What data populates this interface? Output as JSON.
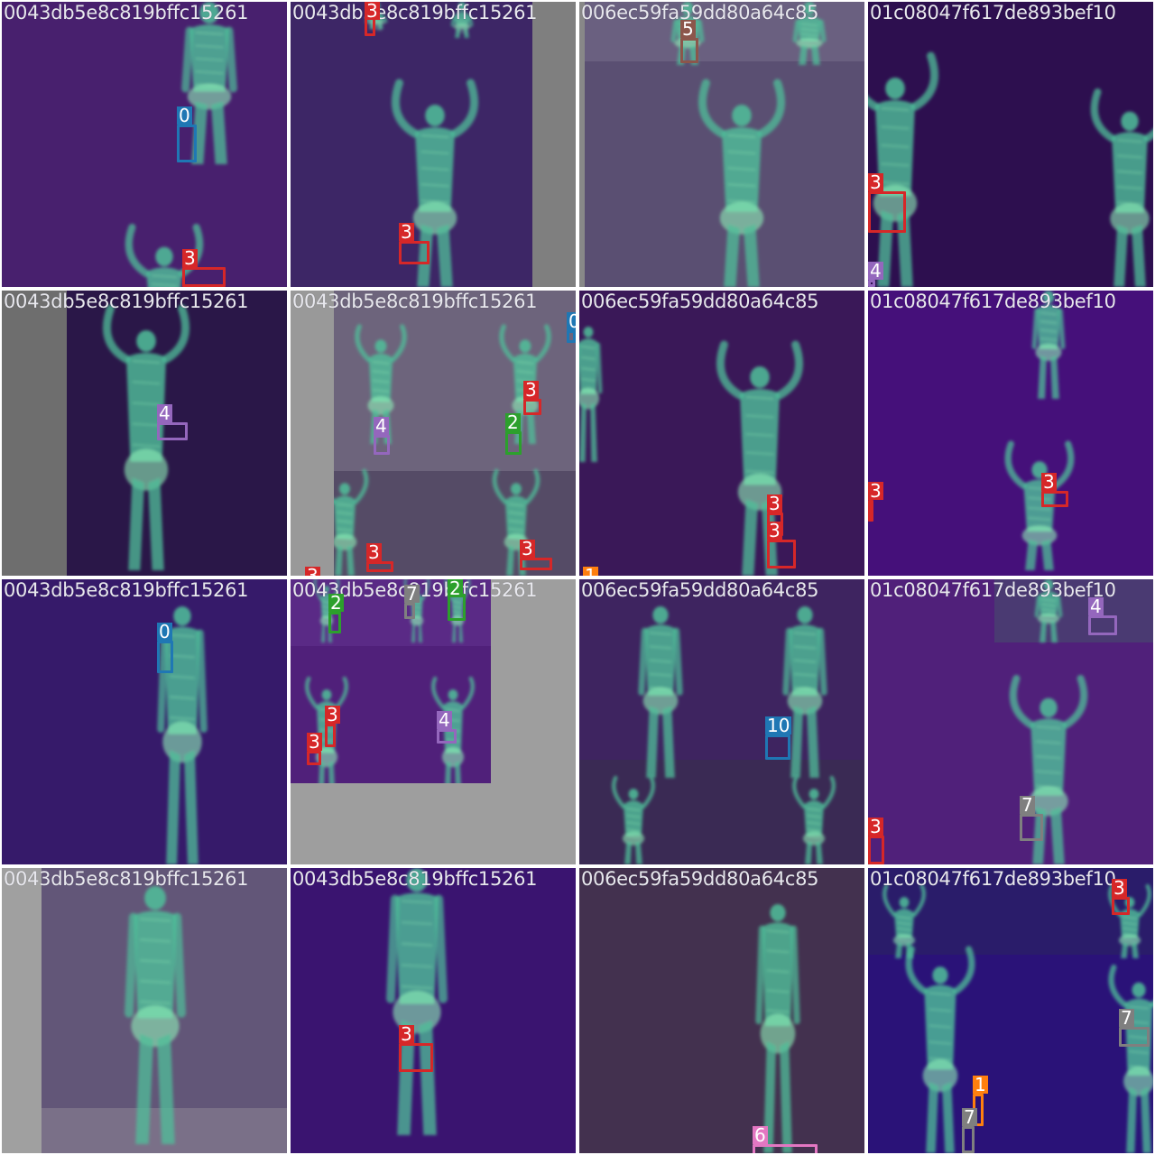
{
  "colors": {
    "0": "#1f77b4",
    "1": "#ff7f0e",
    "2": "#2ca02c",
    "3": "#d62728",
    "4": "#9467bd",
    "5": "#8c564b",
    "6": "#e377c2",
    "7": "#7f7f7f",
    "10": "#1f77b4"
  },
  "tiles": [
    {
      "title": "0043db5e8c819bffc15261",
      "bg": "#48206e",
      "boxes": [
        {
          "label": "0"
        },
        {
          "label": "3"
        }
      ]
    },
    {
      "title": "0043db5e8c819bffc15261",
      "bg": "#3d2666",
      "boxes": [
        {
          "label": "3"
        },
        {
          "label": "3"
        }
      ]
    },
    {
      "title": "006ec59fa59dd80a64c85",
      "bg": "#5a4f72",
      "boxes": [
        {
          "label": "5"
        }
      ]
    },
    {
      "title": "01c08047f617de893bef10",
      "bg": "#2d0f4f",
      "boxes": [
        {
          "label": "3"
        },
        {
          "label": "4"
        }
      ]
    },
    {
      "title": "0043db5e8c819bffc15261",
      "bg": "#2a1748",
      "boxes": [
        {
          "label": "4"
        }
      ]
    },
    {
      "title": "0043db5e8c819bffc15261",
      "bg": "#554b66",
      "boxes": [
        {
          "label": "0"
        },
        {
          "label": "3"
        },
        {
          "label": "2"
        },
        {
          "label": "4"
        },
        {
          "label": "3"
        },
        {
          "label": "3"
        },
        {
          "label": "3"
        }
      ]
    },
    {
      "title": "006ec59fa59dd80a64c85",
      "bg": "#3a1858",
      "boxes": [
        {
          "label": "3"
        },
        {
          "label": "3"
        },
        {
          "label": "1"
        }
      ]
    },
    {
      "title": "01c08047f617de893bef10",
      "bg": "#45107a",
      "boxes": [
        {
          "label": "3"
        },
        {
          "label": "3"
        }
      ]
    },
    {
      "title": "0043db5e8c819bffc15261",
      "bg": "#361a6a",
      "boxes": [
        {
          "label": "0"
        }
      ]
    },
    {
      "title": "0043db5e8c819bffc15261",
      "bg": "#50207a",
      "boxes": [
        {
          "label": "2"
        },
        {
          "label": "7"
        },
        {
          "label": "2"
        },
        {
          "label": "3"
        },
        {
          "label": "3"
        },
        {
          "label": "4"
        }
      ]
    },
    {
      "title": "006ec59fa59dd80a64c85",
      "bg": "#3e2460",
      "boxes": [
        {
          "label": "10"
        }
      ]
    },
    {
      "title": "01c08047f617de893bef10",
      "bg": "#50207a",
      "boxes": [
        {
          "label": "4"
        },
        {
          "label": "7"
        },
        {
          "label": "3"
        }
      ]
    },
    {
      "title": "0043db5e8c819bffc15261",
      "bg": "#625678",
      "boxes": []
    },
    {
      "title": "0043db5e8c819bffc15261",
      "bg": "#3a1470",
      "boxes": [
        {
          "label": "3"
        }
      ]
    },
    {
      "title": "006ec59fa59dd80a64c85",
      "bg": "#43314f",
      "boxes": [
        {
          "label": "6"
        }
      ]
    },
    {
      "title": "01c08047f617de893bef10",
      "bg": "#2a1278",
      "boxes": [
        {
          "label": "3"
        },
        {
          "label": "7"
        },
        {
          "label": "1"
        },
        {
          "label": "7"
        }
      ]
    }
  ]
}
